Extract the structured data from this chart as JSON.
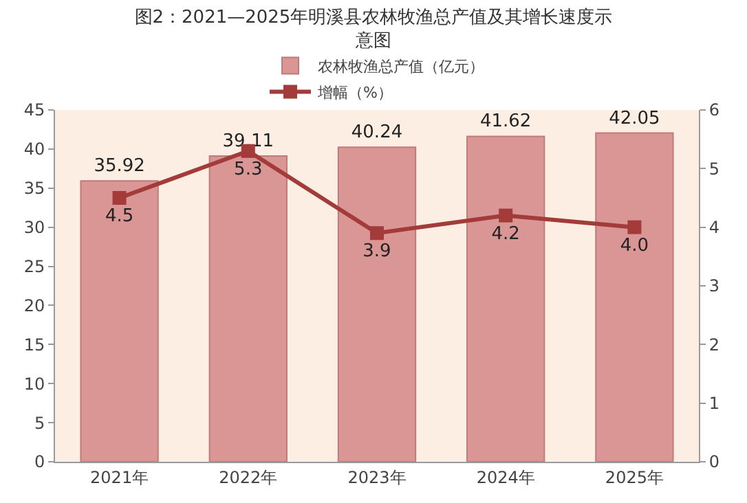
{
  "chart_data": {
    "type": "bar",
    "title": "图2：2021—2025年明溪县农林牧渔总产值及其增长速度示意图",
    "categories": [
      "2021年",
      "2022年",
      "2023年",
      "2024年",
      "2025年"
    ],
    "series": [
      {
        "name": "农林牧渔总产值（亿元）",
        "color": "#d99694",
        "values": [
          35.92,
          39.11,
          40.24,
          41.62,
          42.05
        ],
        "value_labels": [
          "35.92",
          "39.11",
          "40.24",
          "41.62",
          "42.05"
        ]
      },
      {
        "name": "增幅（%）",
        "type": "line",
        "axis": "y2",
        "color": "#a33b3b",
        "values": [
          4.5,
          5.3,
          3.9,
          4.2,
          4.0
        ],
        "value_labels": [
          "4.5",
          "5.3",
          "3.9",
          "4.2",
          "4.0"
        ]
      }
    ],
    "ylim": [
      0,
      45
    ],
    "yticks": [
      0,
      5,
      10,
      15,
      20,
      25,
      30,
      35,
      40,
      45
    ],
    "y2lim": [
      0,
      6
    ],
    "y2ticks": [
      0,
      1,
      2,
      3,
      4,
      5,
      6
    ],
    "legend": "top",
    "marker": "square",
    "grid": false
  }
}
